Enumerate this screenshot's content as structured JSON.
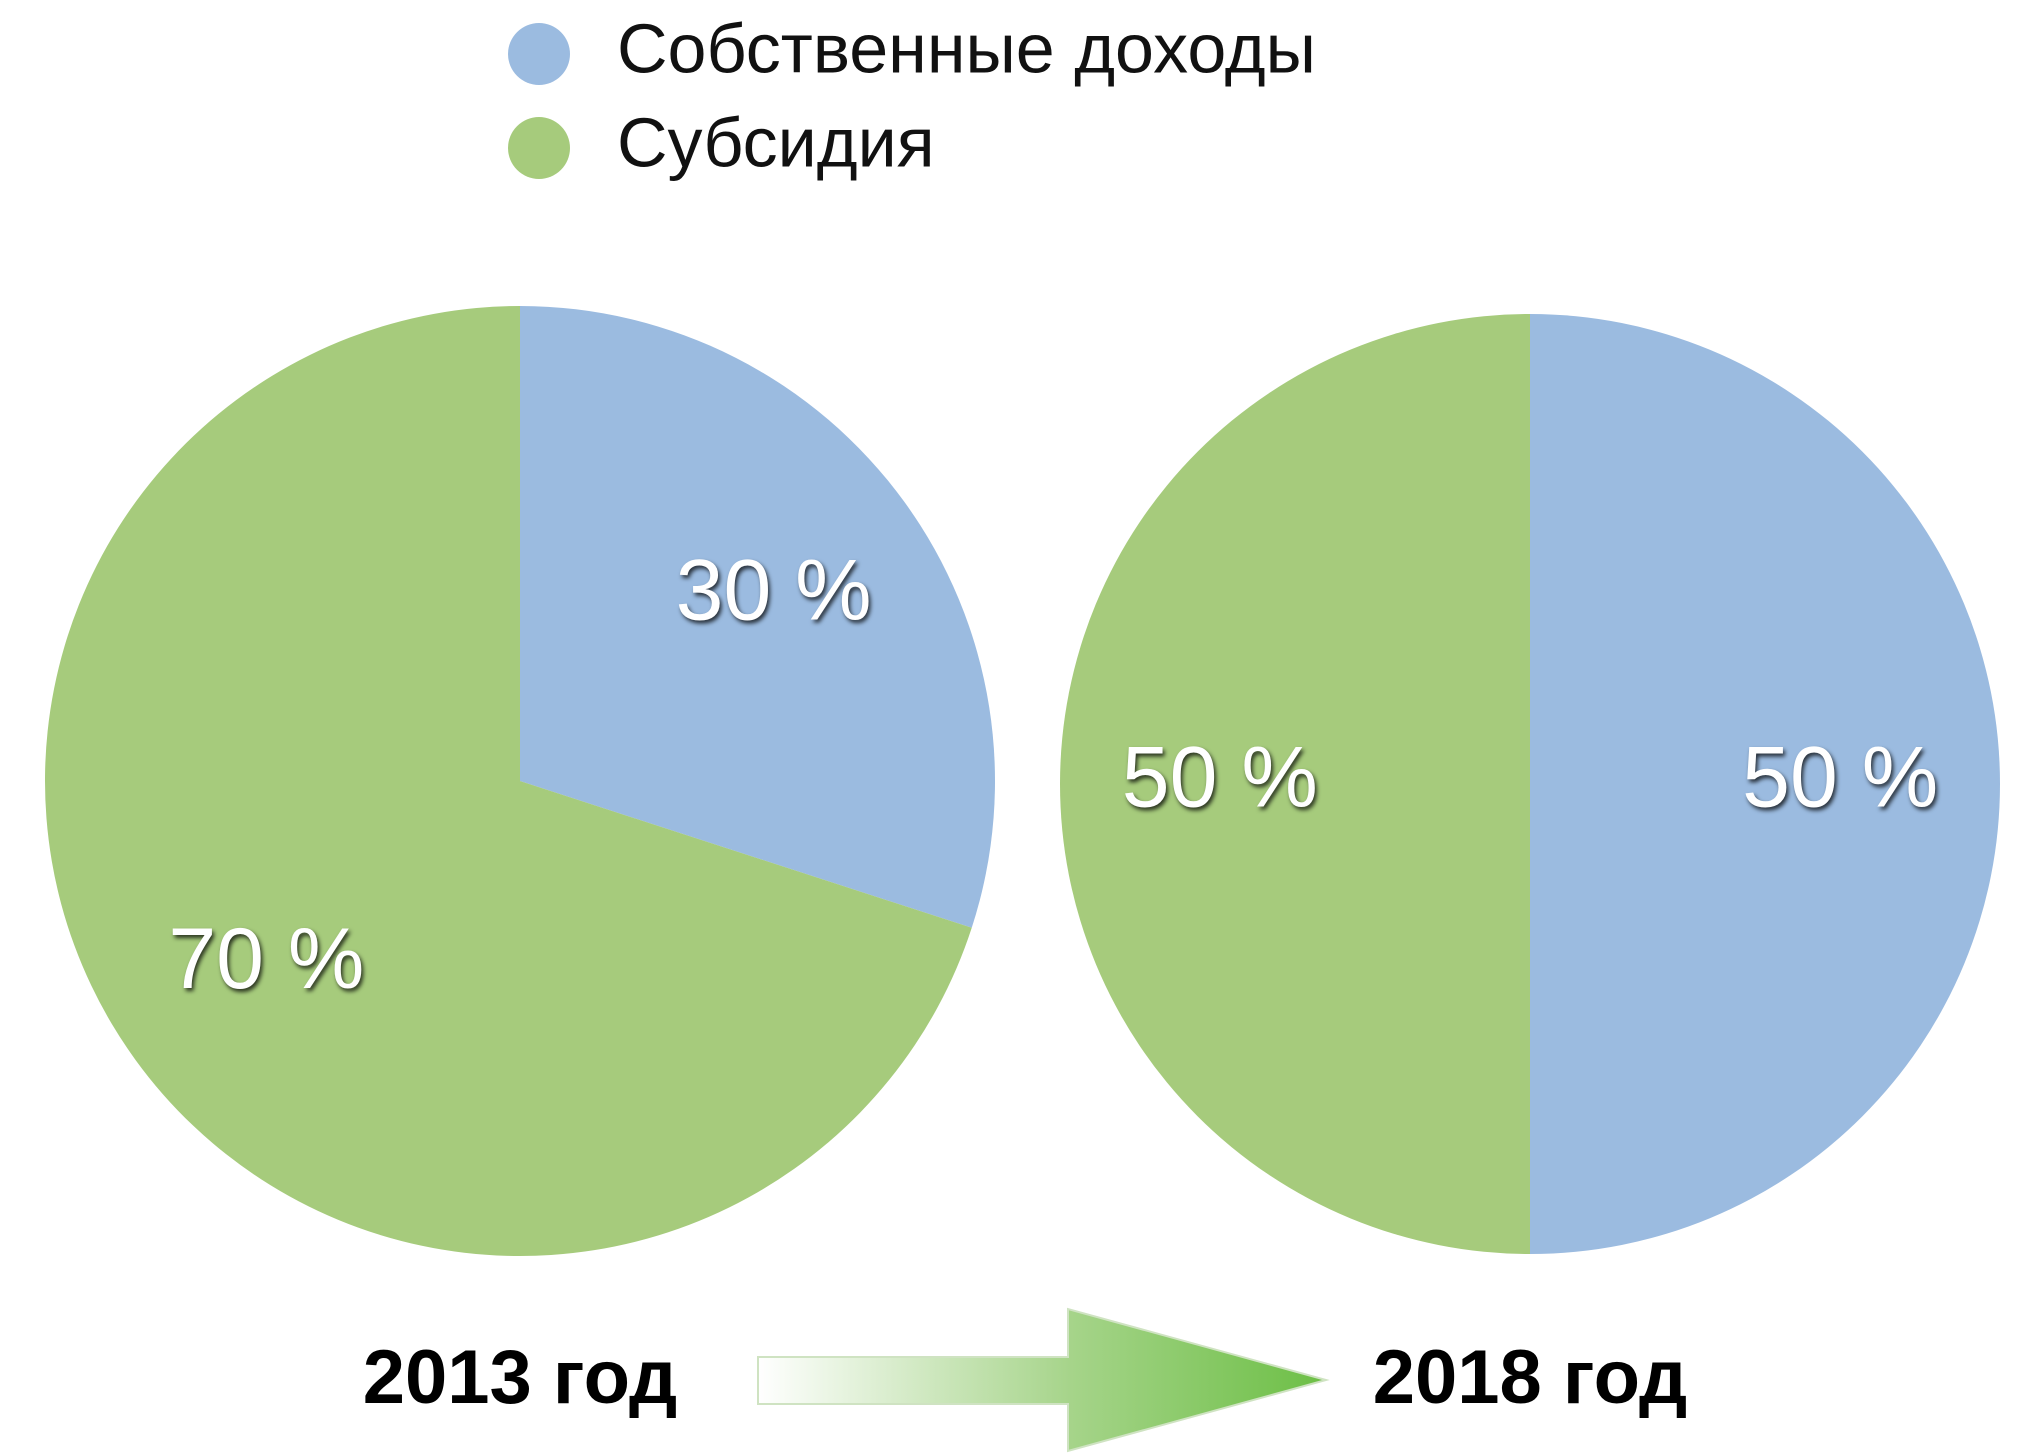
{
  "legend": {
    "items": [
      {
        "name": "Собственные доходы",
        "color": "#9bbbe0"
      },
      {
        "name": "Субсидия",
        "color": "#a6cb7c"
      }
    ]
  },
  "chart_data": [
    {
      "type": "pie",
      "title": "2013 год",
      "values": [
        30,
        70
      ],
      "value_labels": [
        "30 %",
        "70 %"
      ]
    },
    {
      "type": "pie",
      "title": "2018 год",
      "values": [
        50,
        50
      ],
      "value_labels": [
        "50 %",
        "50 %"
      ]
    }
  ]
}
